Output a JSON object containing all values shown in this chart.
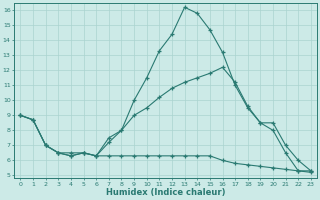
{
  "xlabel": "Humidex (Indice chaleur)",
  "bg_color": "#cceae7",
  "grid_color": "#aad4d0",
  "line_color": "#2a7a72",
  "xlim": [
    -0.5,
    23.5
  ],
  "ylim": [
    4.8,
    16.5
  ],
  "xticks": [
    0,
    1,
    2,
    3,
    4,
    5,
    6,
    7,
    8,
    9,
    10,
    11,
    12,
    13,
    14,
    15,
    16,
    17,
    18,
    19,
    20,
    21,
    22,
    23
  ],
  "yticks": [
    5,
    6,
    7,
    8,
    9,
    10,
    11,
    12,
    13,
    14,
    15,
    16
  ],
  "line1_x": [
    0,
    1,
    2,
    3,
    4,
    5,
    6,
    7,
    8,
    9,
    10,
    11,
    12,
    13,
    14,
    15,
    16,
    17,
    18,
    19,
    20,
    21,
    22,
    23
  ],
  "line1_y": [
    9.0,
    8.7,
    7.0,
    6.5,
    6.5,
    6.5,
    6.3,
    7.5,
    8.0,
    10.0,
    11.5,
    13.3,
    14.4,
    16.2,
    15.8,
    14.7,
    13.2,
    11.0,
    9.5,
    8.5,
    8.0,
    6.5,
    5.3,
    5.3
  ],
  "line2_x": [
    0,
    1,
    2,
    3,
    4,
    5,
    6,
    7,
    8,
    9,
    10,
    11,
    12,
    13,
    14,
    15,
    16,
    17,
    18,
    19,
    20,
    21,
    22,
    23
  ],
  "line2_y": [
    9.0,
    8.7,
    7.0,
    6.5,
    6.3,
    6.5,
    6.3,
    7.2,
    8.0,
    9.0,
    9.5,
    10.2,
    10.8,
    11.2,
    11.5,
    11.8,
    12.2,
    11.2,
    9.6,
    8.5,
    8.5,
    7.0,
    6.0,
    5.3
  ],
  "line3_x": [
    0,
    1,
    2,
    3,
    4,
    5,
    6,
    7,
    8,
    9,
    10,
    11,
    12,
    13,
    14,
    15,
    16,
    17,
    18,
    19,
    20,
    21,
    22,
    23
  ],
  "line3_y": [
    9.0,
    8.7,
    7.0,
    6.5,
    6.3,
    6.5,
    6.3,
    6.3,
    6.3,
    6.3,
    6.3,
    6.3,
    6.3,
    6.3,
    6.3,
    6.3,
    6.0,
    5.8,
    5.7,
    5.6,
    5.5,
    5.4,
    5.3,
    5.2
  ]
}
